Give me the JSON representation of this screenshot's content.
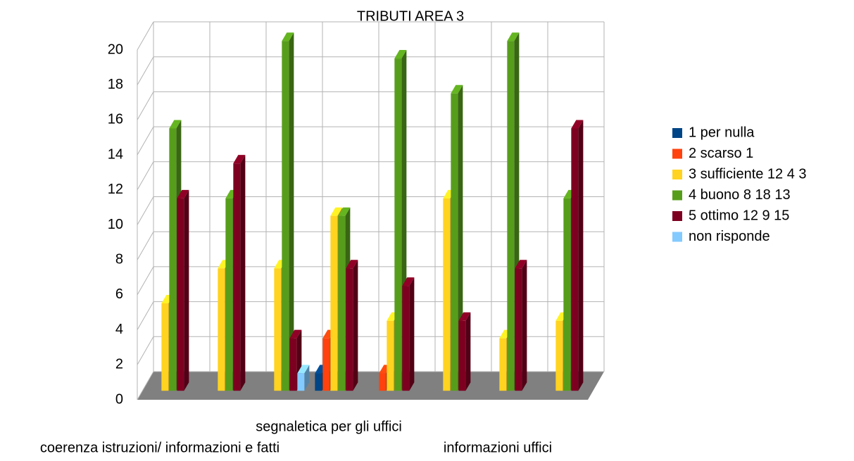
{
  "chart_data": {
    "type": "bar3d",
    "title": "TRIBUTI AREA 3",
    "categories": [
      "coerenza istruzioni/ informazioni e fatti",
      null,
      null,
      "segnaletica per gli uffici",
      null,
      null,
      "informazioni uffici",
      null
    ],
    "series": [
      {
        "name": "1 per nulla",
        "color": "#004586",
        "values": [
          null,
          null,
          null,
          1,
          null,
          null,
          null,
          null
        ]
      },
      {
        "name": "2 scarso 1",
        "color": "#ff420e",
        "values": [
          null,
          null,
          null,
          3,
          1,
          null,
          null,
          null
        ]
      },
      {
        "name": "3 sufficiente 12 4 3",
        "color": "#ffd320",
        "values": [
          5,
          7,
          7,
          10,
          4,
          11,
          3,
          4
        ]
      },
      {
        "name": "4 buono 8 18 13",
        "color": "#579d1c",
        "values": [
          15,
          11,
          20,
          10,
          19,
          17,
          20,
          11
        ]
      },
      {
        "name": "5 ottimo 12 9 15",
        "color": "#7e0021",
        "values": [
          11,
          13,
          3,
          7,
          6,
          4,
          7,
          15
        ]
      },
      {
        "name": "non risponde",
        "color": "#83caff",
        "values": [
          null,
          null,
          1,
          null,
          null,
          null,
          null,
          null
        ]
      }
    ],
    "ylim": [
      0,
      20
    ],
    "yticks": [
      0,
      2,
      4,
      6,
      8,
      10,
      12,
      14,
      16,
      18,
      20
    ],
    "grid": true,
    "legend": "right"
  }
}
